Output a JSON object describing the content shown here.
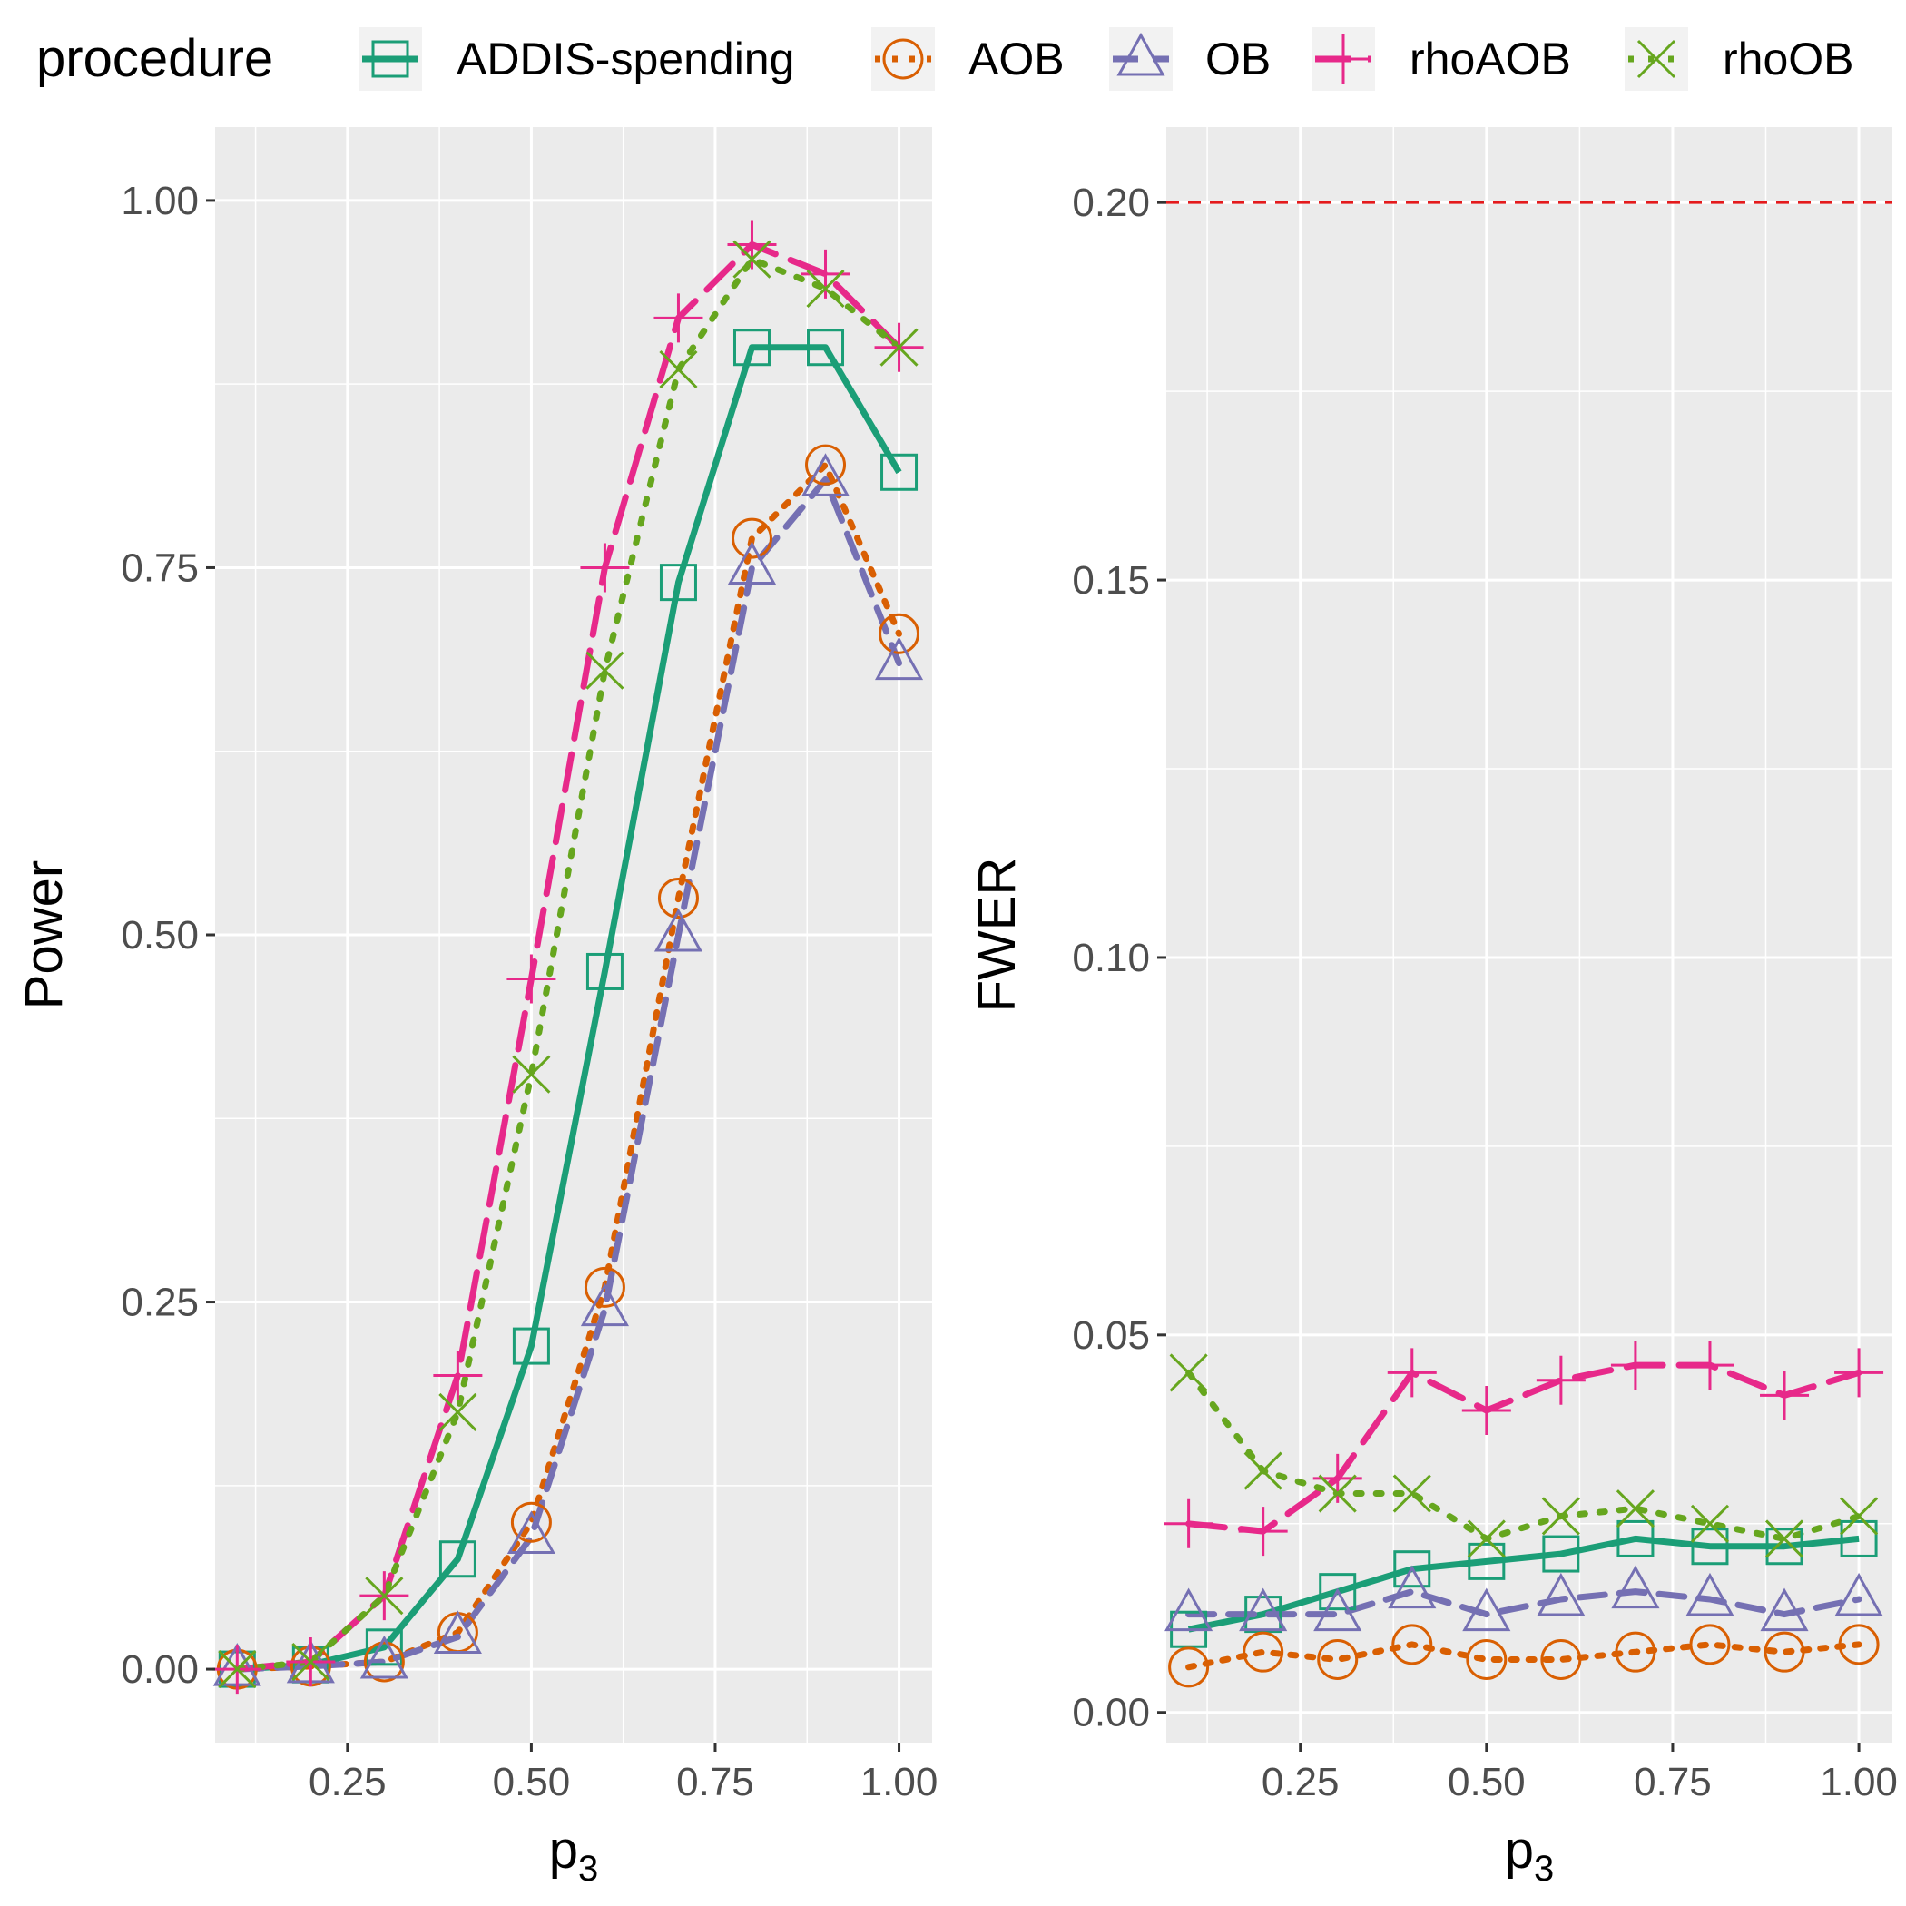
{
  "chart_data": [
    {
      "type": "line",
      "xlabel": "p",
      "xlabel_subscript": "3",
      "ylabel": "Power",
      "xlim": [
        0.07,
        1.045
      ],
      "ylim": [
        -0.05,
        1.05
      ],
      "x_ticks": [
        0.25,
        0.5,
        0.75,
        1.0
      ],
      "x_tick_labels": [
        "0.25",
        "0.50",
        "0.75",
        "1.00"
      ],
      "y_ticks": [
        0.0,
        0.25,
        0.5,
        0.75,
        1.0
      ],
      "y_tick_labels": [
        "0.00",
        "0.25",
        "0.50",
        "0.75",
        "1.00"
      ],
      "x": [
        0.1,
        0.2,
        0.3,
        0.4,
        0.5,
        0.6,
        0.7,
        0.8,
        0.9,
        1.0
      ],
      "series": [
        {
          "name": "ADDIS-spending",
          "values": [
            0.0,
            0.003,
            0.015,
            0.075,
            0.22,
            0.475,
            0.74,
            0.9,
            0.9,
            0.815
          ]
        },
        {
          "name": "AOB",
          "values": [
            0.0,
            0.002,
            0.005,
            0.025,
            0.1,
            0.26,
            0.525,
            0.77,
            0.82,
            0.705
          ]
        },
        {
          "name": "OB",
          "values": [
            0.0,
            0.002,
            0.005,
            0.022,
            0.09,
            0.245,
            0.5,
            0.75,
            0.81,
            0.685
          ]
        },
        {
          "name": "rhoAOB",
          "values": [
            0.0,
            0.005,
            0.05,
            0.2,
            0.47,
            0.75,
            0.92,
            0.97,
            0.95,
            0.9
          ]
        },
        {
          "name": "rhoOB",
          "values": [
            0.0,
            0.005,
            0.05,
            0.175,
            0.405,
            0.68,
            0.885,
            0.96,
            0.94,
            0.9
          ]
        }
      ]
    },
    {
      "type": "line",
      "xlabel": "p",
      "xlabel_subscript": "3",
      "ylabel": "FWER",
      "xlim": [
        0.07,
        1.045
      ],
      "ylim": [
        -0.004,
        0.21
      ],
      "x_ticks": [
        0.25,
        0.5,
        0.75,
        1.0
      ],
      "x_tick_labels": [
        "0.25",
        "0.50",
        "0.75",
        "1.00"
      ],
      "y_ticks": [
        0.0,
        0.05,
        0.1,
        0.15,
        0.2
      ],
      "y_tick_labels": [
        "0.00",
        "0.05",
        "0.10",
        "0.15",
        "0.20"
      ],
      "reference_line": 0.2,
      "x": [
        0.1,
        0.2,
        0.3,
        0.4,
        0.5,
        0.6,
        0.7,
        0.8,
        0.9,
        1.0
      ],
      "series": [
        {
          "name": "ADDIS-spending",
          "values": [
            0.011,
            0.013,
            0.016,
            0.019,
            0.02,
            0.021,
            0.023,
            0.022,
            0.022,
            0.023
          ]
        },
        {
          "name": "AOB",
          "values": [
            0.006,
            0.008,
            0.007,
            0.009,
            0.007,
            0.007,
            0.008,
            0.009,
            0.008,
            0.009
          ]
        },
        {
          "name": "OB",
          "values": [
            0.013,
            0.013,
            0.013,
            0.016,
            0.013,
            0.015,
            0.016,
            0.015,
            0.013,
            0.015
          ]
        },
        {
          "name": "rhoAOB",
          "values": [
            0.025,
            0.024,
            0.031,
            0.045,
            0.04,
            0.044,
            0.046,
            0.046,
            0.042,
            0.045
          ]
        },
        {
          "name": "rhoOB",
          "values": [
            0.045,
            0.032,
            0.029,
            0.029,
            0.023,
            0.026,
            0.027,
            0.025,
            0.023,
            0.026
          ]
        }
      ]
    }
  ],
  "legend": {
    "title": "procedure",
    "items": [
      {
        "name": "ADDIS-spending",
        "color": "#1B9E77",
        "marker": "square",
        "dash": "solid"
      },
      {
        "name": "AOB",
        "color": "#D95F02",
        "marker": "circle",
        "dash": "dotted"
      },
      {
        "name": "OB",
        "color": "#7570B3",
        "marker": "triangle",
        "dash": "dashed"
      },
      {
        "name": "rhoAOB",
        "color": "#E7298A",
        "marker": "plus",
        "dash": "longdash"
      },
      {
        "name": "rhoOB",
        "color": "#66A61E",
        "marker": "cross",
        "dash": "dotdash"
      }
    ]
  },
  "colors": {
    "panel_background": "#EBEBEB",
    "grid_major": "#FFFFFF",
    "reference_line": "#E41A1C"
  }
}
